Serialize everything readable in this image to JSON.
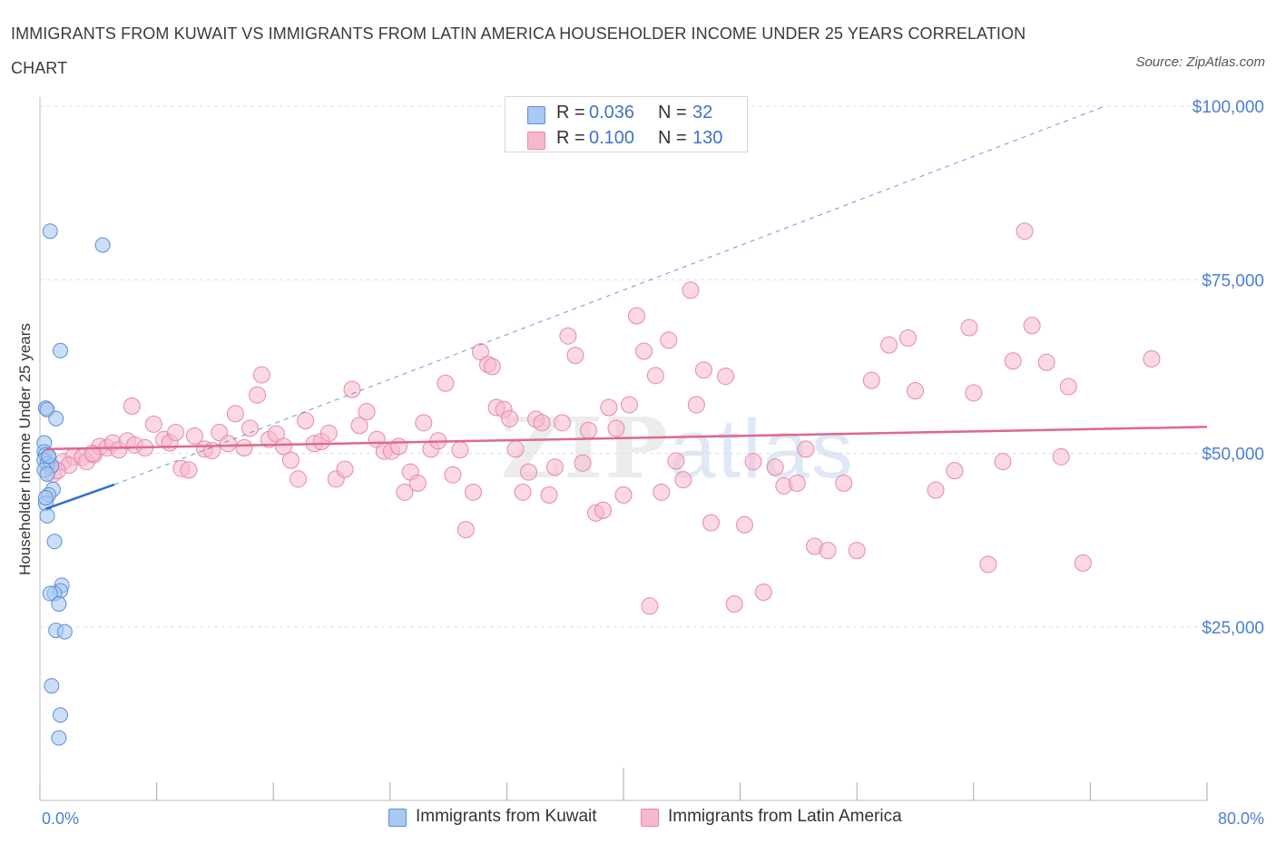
{
  "title": "IMMIGRANTS FROM KUWAIT VS IMMIGRANTS FROM LATIN AMERICA HOUSEHOLDER INCOME UNDER 25 YEARS CORRELATION CHART",
  "source": "Source: ZipAtlas.com",
  "watermark": {
    "zip": "ZIP",
    "atlas": "atlas"
  },
  "legend": {
    "r_label": "R =",
    "n_label": "N =",
    "series": [
      {
        "r": "0.036",
        "n": "32",
        "color": "#a9c8f2"
      },
      {
        "r": "0.100",
        "n": "130",
        "color": "#f7b8cc"
      }
    ]
  },
  "bottom_legend": [
    "Immigrants from Kuwait",
    "Immigrants from Latin America"
  ],
  "colors": {
    "kuwait_fill": "#a9c8f2",
    "kuwait_stroke": "#5b8fd8",
    "kuwait_line": "#2f6fd0",
    "latam_fill": "#f7b8cc",
    "latam_stroke": "#e48aa8",
    "latam_line": "#e0678f",
    "grid": "#dddddd",
    "tick_text": "#4a7fd4"
  },
  "chart_data": {
    "type": "scatter",
    "title": "IMMIGRANTS FROM KUWAIT VS IMMIGRANTS FROM LATIN AMERICA HOUSEHOLDER INCOME UNDER 25 YEARS CORRELATION CHART",
    "xlabel": "",
    "ylabel": "Householder Income Under 25 years",
    "xlim": [
      0,
      80
    ],
    "ylim": [
      0,
      100000
    ],
    "x_tick_labels": [
      "0.0%",
      "80.0%"
    ],
    "y_ticks": [
      25000,
      50000,
      75000,
      100000
    ],
    "y_tick_labels": [
      "$25,000",
      "$50,000",
      "$75,000",
      "$100,000"
    ],
    "grid": true,
    "legend_position": "top-center",
    "series": [
      {
        "name": "Immigrants from Kuwait",
        "r": 0.036,
        "n": 32,
        "trend": {
          "x": [
            0.4,
            5.1
          ],
          "y": [
            42000,
            45500
          ]
        },
        "trend_extended": {
          "x": [
            5.1,
            73
          ],
          "y": [
            45500,
            100000
          ]
        },
        "points": [
          [
            0.7,
            82000
          ],
          [
            4.3,
            80000
          ],
          [
            1.4,
            64800
          ],
          [
            0.4,
            56500
          ],
          [
            0.5,
            56300
          ],
          [
            1.1,
            55000
          ],
          [
            0.3,
            51500
          ],
          [
            0.3,
            50200
          ],
          [
            0.4,
            49800
          ],
          [
            0.6,
            49400
          ],
          [
            0.3,
            49000
          ],
          [
            0.5,
            48500
          ],
          [
            0.8,
            48200
          ],
          [
            0.3,
            47600
          ],
          [
            0.5,
            47000
          ],
          [
            0.9,
            44800
          ],
          [
            0.6,
            44000
          ],
          [
            0.4,
            42800
          ],
          [
            0.5,
            41000
          ],
          [
            1.0,
            37300
          ],
          [
            1.5,
            31000
          ],
          [
            1.4,
            30200
          ],
          [
            1.0,
            29800
          ],
          [
            0.7,
            29800
          ],
          [
            1.3,
            28300
          ],
          [
            1.1,
            24500
          ],
          [
            1.7,
            24300
          ],
          [
            0.8,
            16500
          ],
          [
            1.4,
            12300
          ],
          [
            1.3,
            9000
          ],
          [
            0.6,
            49600
          ],
          [
            0.4,
            43600
          ]
        ]
      },
      {
        "name": "Immigrants from Latin America",
        "r": 0.1,
        "n": 130,
        "trend": {
          "x": [
            0.4,
            80
          ],
          "y": [
            50600,
            53800
          ]
        },
        "points": [
          [
            0.9,
            47000
          ],
          [
            1.6,
            48800
          ],
          [
            2.3,
            49500
          ],
          [
            2.9,
            49400
          ],
          [
            3.2,
            48800
          ],
          [
            3.7,
            49800
          ],
          [
            4.1,
            51000
          ],
          [
            4.6,
            50800
          ],
          [
            5.0,
            51500
          ],
          [
            5.4,
            50500
          ],
          [
            6.0,
            51800
          ],
          [
            6.5,
            51200
          ],
          [
            6.3,
            56800
          ],
          [
            7.2,
            50800
          ],
          [
            7.8,
            54200
          ],
          [
            8.5,
            52000
          ],
          [
            8.9,
            51500
          ],
          [
            9.3,
            53000
          ],
          [
            9.7,
            47800
          ],
          [
            10.2,
            47600
          ],
          [
            10.6,
            52500
          ],
          [
            11.3,
            50600
          ],
          [
            11.8,
            50400
          ],
          [
            12.3,
            53000
          ],
          [
            12.9,
            51400
          ],
          [
            13.4,
            55700
          ],
          [
            14.0,
            50800
          ],
          [
            14.4,
            53600
          ],
          [
            14.9,
            58400
          ],
          [
            15.2,
            61300
          ],
          [
            15.7,
            52000
          ],
          [
            16.2,
            52800
          ],
          [
            16.7,
            51000
          ],
          [
            17.2,
            49000
          ],
          [
            17.7,
            46300
          ],
          [
            18.2,
            54700
          ],
          [
            18.8,
            51400
          ],
          [
            19.3,
            51700
          ],
          [
            19.8,
            52900
          ],
          [
            20.3,
            46300
          ],
          [
            20.9,
            47700
          ],
          [
            21.4,
            59200
          ],
          [
            21.9,
            54000
          ],
          [
            22.4,
            56000
          ],
          [
            23.1,
            52000
          ],
          [
            23.6,
            50300
          ],
          [
            24.1,
            50300
          ],
          [
            24.6,
            51000
          ],
          [
            25.0,
            44400
          ],
          [
            25.4,
            47300
          ],
          [
            25.9,
            45700
          ],
          [
            26.3,
            54400
          ],
          [
            26.8,
            50600
          ],
          [
            27.3,
            51800
          ],
          [
            27.8,
            60100
          ],
          [
            28.3,
            46900
          ],
          [
            28.8,
            50500
          ],
          [
            29.2,
            39000
          ],
          [
            29.7,
            44400
          ],
          [
            30.2,
            64600
          ],
          [
            30.7,
            62800
          ],
          [
            31.0,
            62500
          ],
          [
            31.3,
            56600
          ],
          [
            31.8,
            56300
          ],
          [
            32.2,
            55000
          ],
          [
            32.6,
            50600
          ],
          [
            33.1,
            44400
          ],
          [
            33.5,
            47300
          ],
          [
            34.0,
            54900
          ],
          [
            34.4,
            54400
          ],
          [
            34.9,
            44000
          ],
          [
            35.3,
            48000
          ],
          [
            35.8,
            54400
          ],
          [
            36.2,
            66900
          ],
          [
            36.7,
            64100
          ],
          [
            37.2,
            48600
          ],
          [
            37.6,
            53300
          ],
          [
            38.1,
            41400
          ],
          [
            38.6,
            41800
          ],
          [
            39.0,
            56600
          ],
          [
            39.5,
            53600
          ],
          [
            40.0,
            44000
          ],
          [
            40.4,
            57000
          ],
          [
            40.9,
            69800
          ],
          [
            41.4,
            64700
          ],
          [
            41.8,
            28000
          ],
          [
            42.2,
            61200
          ],
          [
            42.6,
            44400
          ],
          [
            43.1,
            66300
          ],
          [
            43.6,
            48900
          ],
          [
            44.1,
            46200
          ],
          [
            44.6,
            73500
          ],
          [
            45.0,
            57000
          ],
          [
            45.5,
            62000
          ],
          [
            46.0,
            40000
          ],
          [
            47.0,
            61100
          ],
          [
            47.6,
            28300
          ],
          [
            48.3,
            39700
          ],
          [
            48.9,
            48800
          ],
          [
            49.6,
            30000
          ],
          [
            50.4,
            48000
          ],
          [
            51.0,
            45300
          ],
          [
            51.9,
            45700
          ],
          [
            52.5,
            50600
          ],
          [
            53.1,
            36600
          ],
          [
            54.0,
            36000
          ],
          [
            55.1,
            45700
          ],
          [
            56.0,
            36000
          ],
          [
            57.0,
            60500
          ],
          [
            58.2,
            65600
          ],
          [
            59.5,
            66600
          ],
          [
            60.0,
            59000
          ],
          [
            61.4,
            44700
          ],
          [
            62.7,
            47500
          ],
          [
            63.7,
            68100
          ],
          [
            64.0,
            58700
          ],
          [
            65.0,
            34000
          ],
          [
            66.0,
            48800
          ],
          [
            66.7,
            63300
          ],
          [
            67.5,
            82000
          ],
          [
            68.0,
            68400
          ],
          [
            69.0,
            63100
          ],
          [
            70.0,
            49500
          ],
          [
            70.5,
            59600
          ],
          [
            71.5,
            34200
          ],
          [
            76.2,
            63600
          ],
          [
            2.0,
            48300
          ],
          [
            0.7,
            48000
          ],
          [
            1.2,
            47500
          ],
          [
            3.6,
            50000
          ]
        ]
      }
    ]
  }
}
